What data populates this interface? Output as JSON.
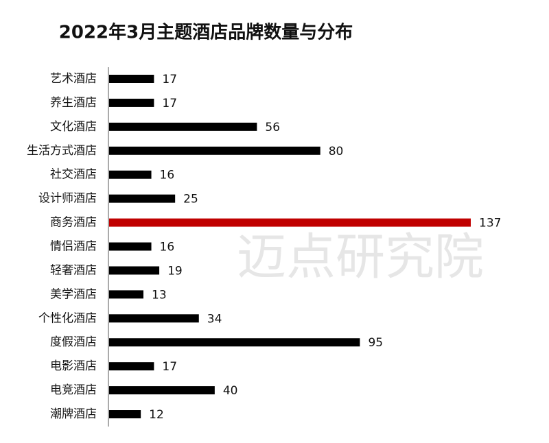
{
  "chart_data": {
    "type": "bar",
    "orientation": "horizontal",
    "title": "2022年3月主题酒店品牌数量与分布",
    "watermark": "迈点研究院",
    "categories": [
      "艺术酒店",
      "养生酒店",
      "文化酒店",
      "生活方式酒店",
      "社交酒店",
      "设计师酒店",
      "商务酒店",
      "情侣酒店",
      "轻奢酒店",
      "美学酒店",
      "个性化酒店",
      "度假酒店",
      "电影酒店",
      "电竞酒店",
      "潮牌酒店"
    ],
    "values": [
      17,
      17,
      56,
      80,
      16,
      25,
      137,
      16,
      19,
      13,
      34,
      95,
      17,
      40,
      12
    ],
    "colors": [
      "#000000",
      "#000000",
      "#000000",
      "#000000",
      "#000000",
      "#000000",
      "#c00000",
      "#000000",
      "#000000",
      "#000000",
      "#000000",
      "#000000",
      "#000000",
      "#000000",
      "#000000"
    ],
    "xlim": [
      0,
      137
    ]
  }
}
